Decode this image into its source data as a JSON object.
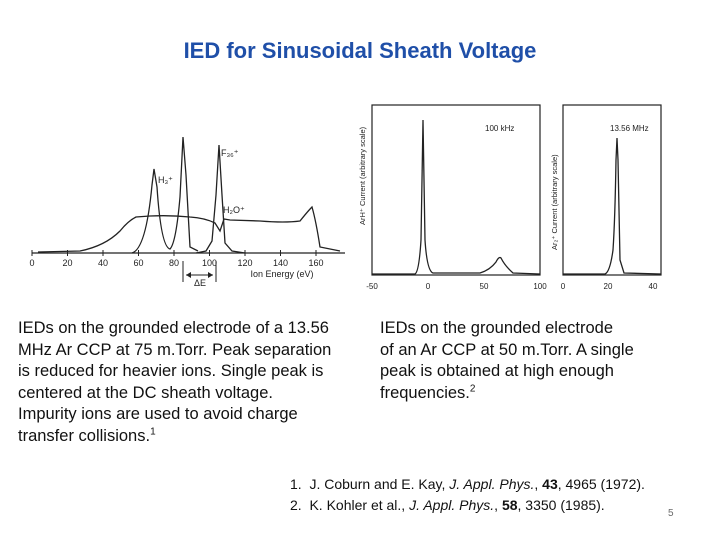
{
  "slide": {
    "title": "IED for Sinusoidal Sheath Voltage",
    "page_number": "5"
  },
  "figure_left": {
    "x_ticks": [
      "0",
      "20",
      "40",
      "60",
      "80",
      "100",
      "120",
      "140",
      "160"
    ],
    "xlabel": "Ion Energy (eV)",
    "delta_label": "ΔE",
    "peak_labels": [
      "H₃⁺",
      "F₃₆⁺",
      "H₂O⁺"
    ]
  },
  "figure_mid": {
    "freq_label": "100 kHz",
    "ylabel": "ArH⁺ Current (arbitrary scale)",
    "x_ticks": [
      "-50",
      "0",
      "50",
      "100"
    ]
  },
  "figure_right": {
    "freq_label": "13.56 MHz",
    "ylabel": "Ar₂⁺ Current (arbitrary scale)",
    "x_ticks": [
      "0",
      "20",
      "40"
    ]
  },
  "caption_left": {
    "lines": [
      "IEDs on the grounded electrode of a 13.56",
      "MHz Ar CCP at 75 m.Torr. Peak separation",
      "is reduced for heavier ions. Single peak is",
      "centered at the DC sheath voltage.",
      "Impurity ions are used to avoid charge",
      "transfer collisions."
    ],
    "footnote": "1"
  },
  "caption_right": {
    "lines": [
      "IEDs on the grounded electrode",
      "of an Ar CCP at 50 m.Torr. A single",
      "peak is obtained at high enough",
      "frequencies."
    ],
    "footnote": "2"
  },
  "references": [
    {
      "num": "1.",
      "authors": "J. Coburn and E. Kay, ",
      "journal": "J. Appl. Phys.",
      "sep": ", ",
      "volume": "43",
      "rest": ", 4965 (1972)."
    },
    {
      "num": "2.",
      "authors": "K. Kohler et al., ",
      "journal": "J. Appl. Phys.",
      "sep": ", ",
      "volume": "58",
      "rest": ", 3350 (1985)."
    }
  ]
}
